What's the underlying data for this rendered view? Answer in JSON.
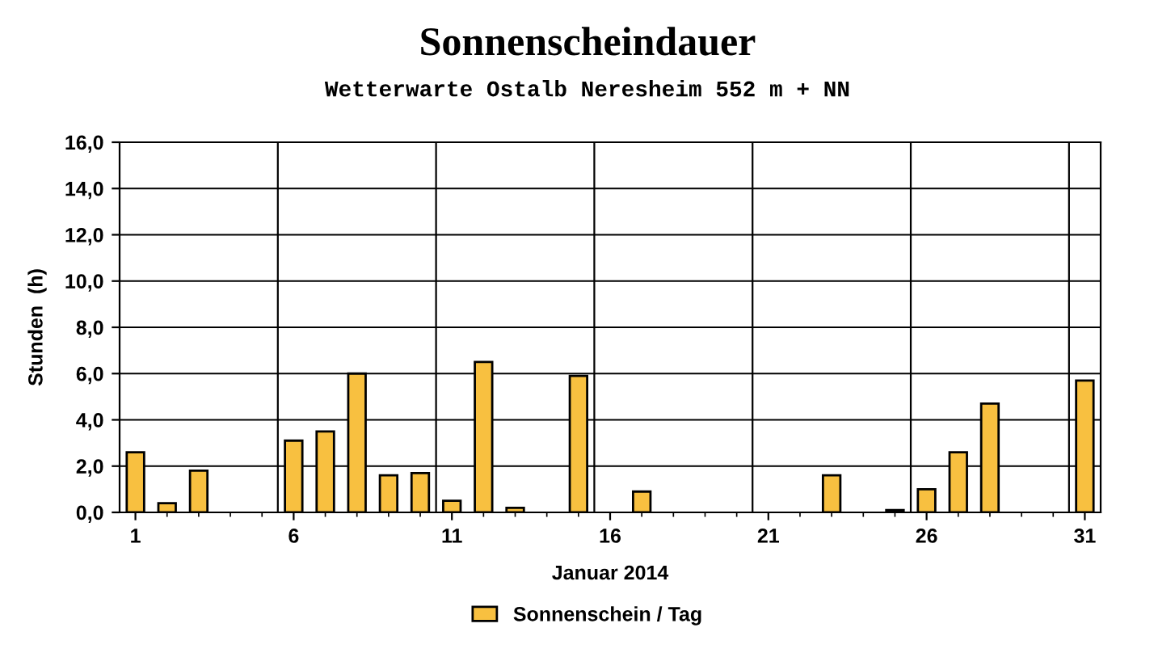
{
  "chart_data": {
    "type": "bar",
    "title": "Sonnenscheindauer",
    "subtitle": "Wetterwarte Ostalb Neresheim 552 m + NN",
    "xlabel": "Januar 2014",
    "ylabel": "Stunden  (h)",
    "x": [
      1,
      2,
      3,
      4,
      5,
      6,
      7,
      8,
      9,
      10,
      11,
      12,
      13,
      14,
      15,
      16,
      17,
      18,
      19,
      20,
      21,
      22,
      23,
      24,
      25,
      26,
      27,
      28,
      29,
      30,
      31
    ],
    "series": [
      {
        "name": "Sonnenschein / Tag",
        "color": "#f8c040",
        "values": [
          2.6,
          0.4,
          1.8,
          null,
          null,
          3.1,
          3.5,
          6.0,
          1.6,
          1.7,
          0.5,
          6.5,
          0.2,
          null,
          5.9,
          null,
          0.9,
          null,
          null,
          null,
          null,
          null,
          1.6,
          null,
          0.1,
          1.0,
          2.6,
          4.7,
          null,
          null,
          5.7
        ]
      }
    ],
    "xlim": [
      0.5,
      31.5
    ],
    "xticks": [
      1,
      6,
      11,
      16,
      21,
      26,
      31
    ],
    "ylim": [
      0,
      16
    ],
    "yticks": [
      {
        "value": 0,
        "label": "0,0"
      },
      {
        "value": 2,
        "label": "2,0"
      },
      {
        "value": 4,
        "label": "4,0"
      },
      {
        "value": 6,
        "label": "6,0"
      },
      {
        "value": 8,
        "label": "8,0"
      },
      {
        "value": 10,
        "label": "10,0"
      },
      {
        "value": 12,
        "label": "12,0"
      },
      {
        "value": 14,
        "label": "14,0"
      },
      {
        "value": 16,
        "label": "16,0"
      }
    ],
    "grid": "y",
    "legend": "bottom",
    "ref_lines": [
      {
        "axis": "x",
        "value": 5.5,
        "color": "#000000"
      },
      {
        "axis": "x",
        "value": 10.5,
        "color": "#000000"
      },
      {
        "axis": "x",
        "value": 15.5,
        "color": "#000000"
      },
      {
        "axis": "x",
        "value": 20.5,
        "color": "#000000"
      },
      {
        "axis": "x",
        "value": 25.5,
        "color": "#000000"
      },
      {
        "axis": "x",
        "value": 30.5,
        "color": "#000000"
      }
    ]
  }
}
